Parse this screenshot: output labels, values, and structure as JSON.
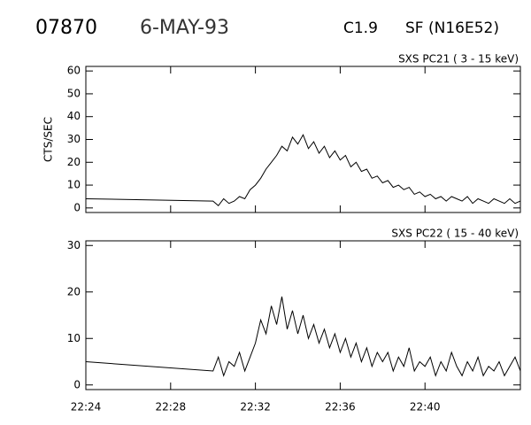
{
  "header": {
    "id": "07870",
    "date": "6-MAY-93",
    "class": "C1.9",
    "flare": "SF (N16E52)"
  },
  "chart_data": [
    {
      "type": "line",
      "title": "SXS PC21  (  3 - 15 keV)",
      "y_label": "CTS/SEC",
      "color": "#000000",
      "xlim": [
        1344,
        1364.5
      ],
      "ylim": [
        -2,
        62
      ],
      "yticks": [
        0,
        10,
        20,
        30,
        40,
        50,
        60
      ],
      "x": [
        1344,
        1350,
        1350.25,
        1350.5,
        1350.75,
        1351,
        1351.25,
        1351.5,
        1351.75,
        1352,
        1352.25,
        1352.5,
        1352.75,
        1353,
        1353.25,
        1353.5,
        1353.75,
        1354,
        1354.25,
        1354.5,
        1354.75,
        1355,
        1355.25,
        1355.5,
        1355.75,
        1356,
        1356.25,
        1356.5,
        1356.75,
        1357,
        1357.25,
        1357.5,
        1357.75,
        1358,
        1358.25,
        1358.5,
        1358.75,
        1359,
        1359.25,
        1359.5,
        1359.75,
        1360,
        1360.25,
        1360.5,
        1360.75,
        1361,
        1361.25,
        1361.5,
        1361.75,
        1362,
        1362.25,
        1362.5,
        1362.75,
        1363,
        1363.25,
        1363.5,
        1363.75,
        1364,
        1364.25,
        1364.5
      ],
      "values": [
        4,
        3,
        1,
        4,
        2,
        3,
        5,
        4,
        8,
        10,
        13,
        17,
        20,
        23,
        27,
        25,
        31,
        28,
        32,
        26,
        29,
        24,
        27,
        22,
        25,
        21,
        23,
        18,
        20,
        16,
        17,
        13,
        14,
        11,
        12,
        9,
        10,
        8,
        9,
        6,
        7,
        5,
        6,
        4,
        5,
        3,
        5,
        4,
        3,
        5,
        2,
        4,
        3,
        2,
        4,
        3,
        2,
        4,
        2,
        3
      ]
    },
    {
      "type": "line",
      "title": "SXS PC22  ( 15 - 40 keV)",
      "color": "#000000",
      "xlim": [
        1344,
        1364.5
      ],
      "ylim": [
        -1,
        31
      ],
      "yticks": [
        0,
        10,
        20,
        30
      ],
      "xticks": [
        {
          "value": 1344,
          "label": "22:24"
        },
        {
          "value": 1348,
          "label": "22:28"
        },
        {
          "value": 1352,
          "label": "22:32"
        },
        {
          "value": 1356,
          "label": "22:36"
        },
        {
          "value": 1360,
          "label": "22:40"
        }
      ],
      "x": [
        1344,
        1350,
        1350.25,
        1350.5,
        1350.75,
        1351,
        1351.25,
        1351.5,
        1351.75,
        1352,
        1352.25,
        1352.5,
        1352.75,
        1353,
        1353.25,
        1353.5,
        1353.75,
        1354,
        1354.25,
        1354.5,
        1354.75,
        1355,
        1355.25,
        1355.5,
        1355.75,
        1356,
        1356.25,
        1356.5,
        1356.75,
        1357,
        1357.25,
        1357.5,
        1357.75,
        1358,
        1358.25,
        1358.5,
        1358.75,
        1359,
        1359.25,
        1359.5,
        1359.75,
        1360,
        1360.25,
        1360.5,
        1360.75,
        1361,
        1361.25,
        1361.5,
        1361.75,
        1362,
        1362.25,
        1362.5,
        1362.75,
        1363,
        1363.25,
        1363.5,
        1363.75,
        1364,
        1364.25,
        1364.5
      ],
      "values": [
        5,
        3,
        6,
        2,
        5,
        4,
        7,
        3,
        6,
        9,
        14,
        11,
        17,
        13,
        19,
        12,
        16,
        11,
        15,
        10,
        13,
        9,
        12,
        8,
        11,
        7,
        10,
        6,
        9,
        5,
        8,
        4,
        7,
        5,
        7,
        3,
        6,
        4,
        8,
        3,
        5,
        4,
        6,
        2,
        5,
        3,
        7,
        4,
        2,
        5,
        3,
        6,
        2,
        4,
        3,
        5,
        2,
        4,
        6,
        3
      ]
    }
  ]
}
